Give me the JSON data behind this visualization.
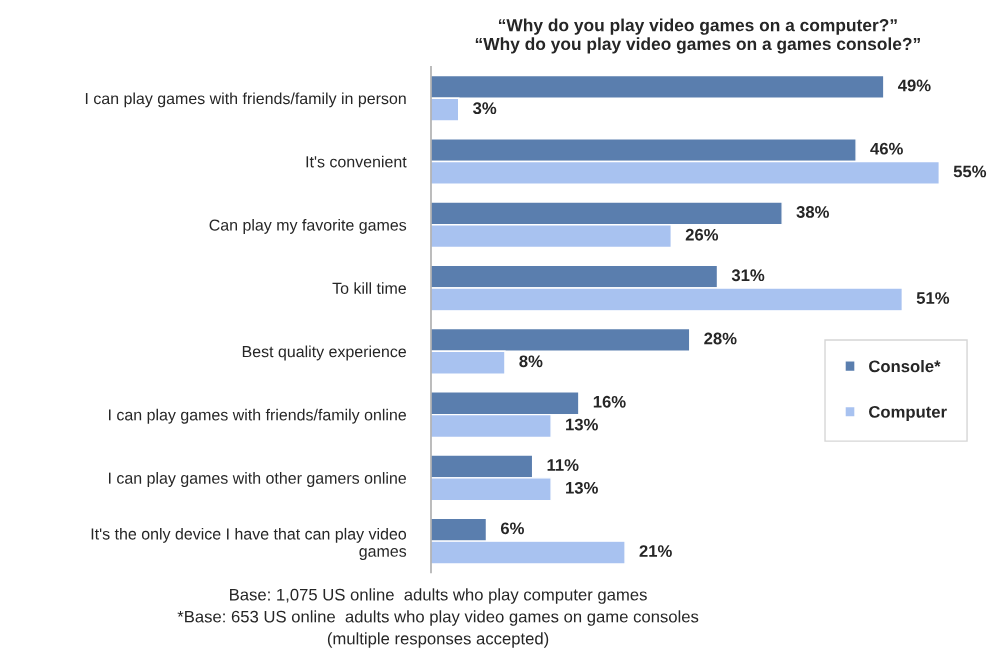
{
  "chart_data": {
    "type": "bar",
    "orientation": "horizontal",
    "title": "“Why do you play video games on a computer?”\n“Why do you play video games on a games console?”",
    "categories": [
      "I can play games with friends/family in person",
      "It's convenient",
      "Can play my favorite games",
      "To kill time",
      "Best quality experience",
      "I can play games with friends/family online",
      "I can play games with other gamers online",
      "It's the only device I have that can play video\ngames"
    ],
    "series": [
      {
        "name": "Console*",
        "color": "#5a7eae",
        "values": [
          49,
          46,
          38,
          31,
          28,
          16,
          11,
          6
        ],
        "value_labels": [
          "49%",
          "46%",
          "38%",
          "31%",
          "28%",
          "16%",
          "11%",
          "6%"
        ]
      },
      {
        "name": "Computer",
        "color": "#a8c2f0",
        "values": [
          3,
          55,
          26,
          51,
          8,
          13,
          13,
          21
        ],
        "value_labels": [
          "3%",
          "55%",
          "26%",
          "51%",
          "8%",
          "13%",
          "13%",
          "21%"
        ]
      }
    ],
    "legend": "right",
    "grid": false,
    "tick_labels": "y",
    "annotations": [
      "Base: 1,075 US online  adults who play computer games",
      "*Base: 653 US online  adults who play video games on game consoles",
      "(multiple responses accepted)"
    ]
  }
}
